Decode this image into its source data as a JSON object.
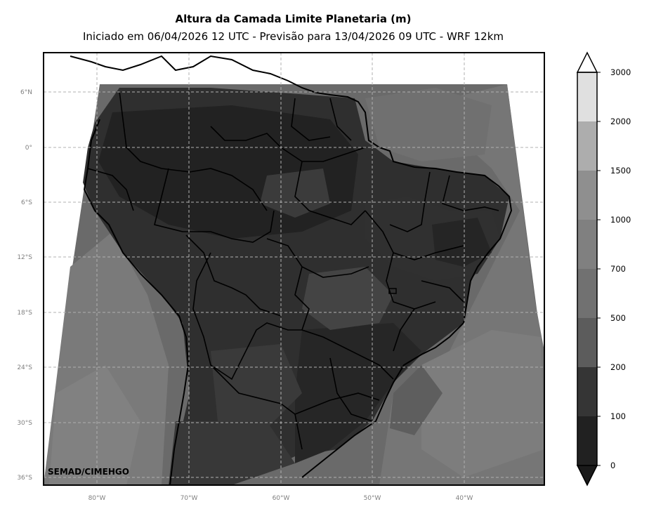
{
  "map": {
    "title": "Altura da Camada Limite Planetaria (m)",
    "subtitle": "Iniciado em 06/04/2026 12 UTC - Previsão para 13/04/2026 09 UTC - WRF 12km",
    "watermark": "SEMAD/CIMEHGO",
    "lat_labels": [
      "6°N",
      "0°",
      "6°S",
      "12°S",
      "18°S",
      "24°S",
      "30°S",
      "36°S"
    ],
    "lon_labels": [
      "80°W",
      "70°W",
      "60°W",
      "50°W",
      "40°W"
    ],
    "gridlines": true
  },
  "colorbar": {
    "levels": [
      "0",
      "100",
      "200",
      "500",
      "700",
      "1000",
      "1500",
      "2000",
      "3000"
    ],
    "colors": [
      "#1a1a1a",
      "#212121",
      "#353535",
      "#5c5c5c",
      "#717171",
      "#808080",
      "#8f8f8f",
      "#adadad",
      "#e0e0e0"
    ],
    "extend": "both"
  }
}
